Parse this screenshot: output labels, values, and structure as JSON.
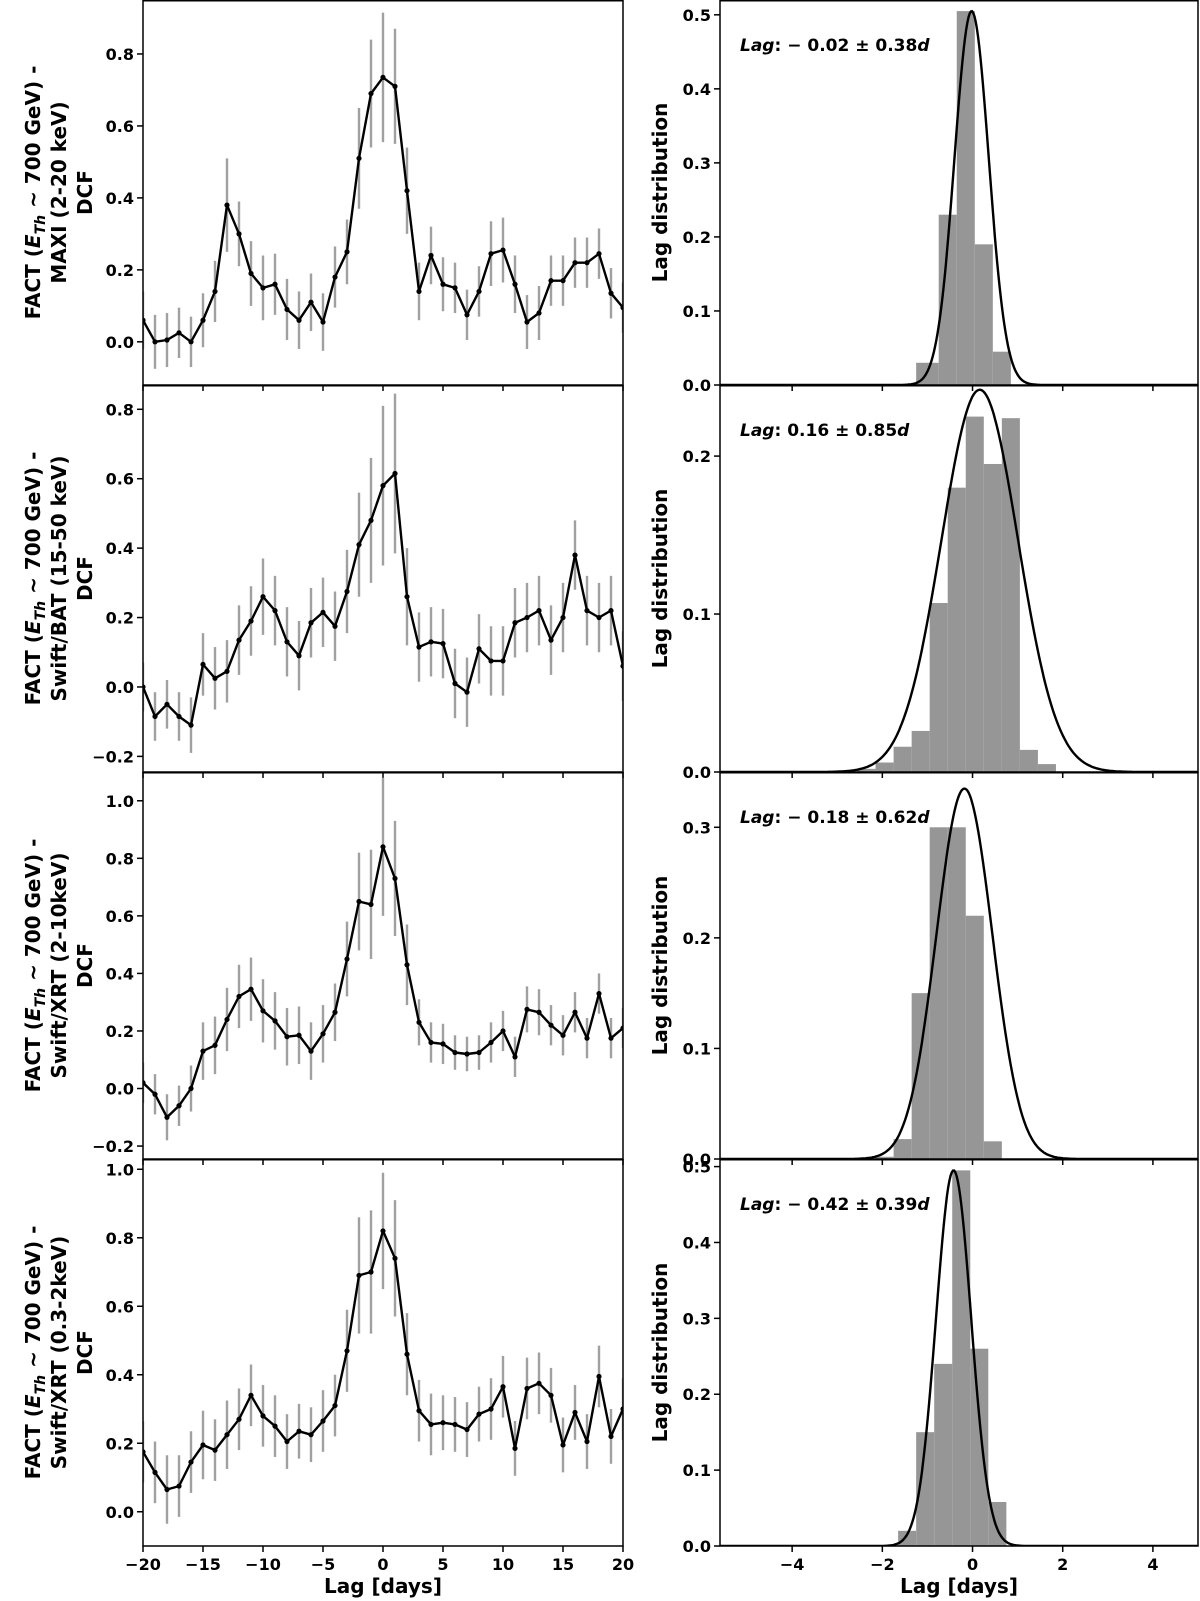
{
  "chart_data": [
    {
      "type": "line",
      "panel": "dcf-maxi",
      "ylabel_lines": [
        "FACT (E_Th ~ 700 GeV) -",
        "MAXI (2-20 keV)",
        "DCF"
      ],
      "xlabel": "",
      "xlim": [
        -20,
        20
      ],
      "ylim": [
        -0.12,
        0.95
      ],
      "xticks": [
        -20,
        -15,
        -10,
        -5,
        0,
        5,
        10,
        15,
        20
      ],
      "yticks": [
        0.0,
        0.2,
        0.4,
        0.6,
        0.8
      ],
      "ytick_labels": [
        "0.0",
        "0.2",
        "0.4",
        "0.6",
        "0.8"
      ],
      "x": [
        -20,
        -19,
        -18,
        -17,
        -16,
        -15,
        -14,
        -13,
        -12,
        -11,
        -10,
        -9,
        -8,
        -7,
        -6,
        -5,
        -4,
        -3,
        -2,
        -1,
        0,
        1,
        2,
        3,
        4,
        5,
        6,
        7,
        8,
        9,
        10,
        11,
        12,
        13,
        14,
        15,
        16,
        17,
        18,
        19,
        20
      ],
      "values": [
        0.06,
        0.0,
        0.005,
        0.025,
        0.0,
        0.06,
        0.14,
        0.38,
        0.3,
        0.19,
        0.15,
        0.16,
        0.09,
        0.06,
        0.11,
        0.055,
        0.18,
        0.25,
        0.51,
        0.69,
        0.735,
        0.71,
        0.42,
        0.14,
        0.24,
        0.16,
        0.15,
        0.075,
        0.14,
        0.245,
        0.255,
        0.16,
        0.055,
        0.08,
        0.17,
        0.17,
        0.22,
        0.22,
        0.245,
        0.135,
        0.095
      ],
      "errors": [
        0.08,
        0.075,
        0.075,
        0.07,
        0.07,
        0.075,
        0.085,
        0.13,
        0.09,
        0.09,
        0.09,
        0.085,
        0.085,
        0.08,
        0.08,
        0.08,
        0.085,
        0.09,
        0.14,
        0.15,
        0.18,
        0.16,
        0.12,
        0.08,
        0.08,
        0.075,
        0.07,
        0.07,
        0.07,
        0.09,
        0.09,
        0.08,
        0.075,
        0.075,
        0.07,
        0.07,
        0.07,
        0.07,
        0.07,
        0.07,
        0.07
      ]
    },
    {
      "type": "bar",
      "panel": "lag-maxi",
      "ylabel": "Lag distribution",
      "xlabel": "",
      "xlim": [
        -5.6,
        5.0
      ],
      "ylim": [
        0.0,
        0.52
      ],
      "xticks": [
        -4,
        -2,
        0,
        2,
        4
      ],
      "yticks": [
        0.0,
        0.1,
        0.2,
        0.3,
        0.4,
        0.5
      ],
      "ytick_labels": [
        "0.0",
        "0.1",
        "0.2",
        "0.3",
        "0.4",
        "0.5"
      ],
      "bin_edges": [
        -1.25,
        -0.75,
        -0.35,
        0.05,
        0.45,
        0.85,
        1.25
      ],
      "values": [
        0.03,
        0.23,
        0.505,
        0.19,
        0.045,
        0.0
      ],
      "fit": {
        "mean": -0.02,
        "sigma": 0.38,
        "peak": 0.505
      },
      "annotation_prefix": "Lag",
      "annotation": ": − 0.02 ± 0.38",
      "annotation_suffix": "d"
    },
    {
      "type": "line",
      "panel": "dcf-bat",
      "ylabel_lines": [
        "FACT (E_Th ~ 700 GeV) -",
        "Swift/BAT (15-50 keV)",
        "DCF"
      ],
      "xlabel": "",
      "xlim": [
        -20,
        20
      ],
      "ylim": [
        -0.245,
        0.87
      ],
      "xticks": [
        -20,
        -15,
        -10,
        -5,
        0,
        5,
        10,
        15,
        20
      ],
      "yticks": [
        -0.2,
        0.0,
        0.2,
        0.4,
        0.6,
        0.8
      ],
      "ytick_labels": [
        "−0.2",
        "0.0",
        "0.2",
        "0.4",
        "0.6",
        "0.8"
      ],
      "x": [
        -20,
        -19,
        -18,
        -17,
        -16,
        -15,
        -14,
        -13,
        -12,
        -11,
        -10,
        -9,
        -8,
        -7,
        -6,
        -5,
        -4,
        -3,
        -2,
        -1,
        0,
        1,
        2,
        3,
        4,
        5,
        6,
        7,
        8,
        9,
        10,
        11,
        12,
        13,
        14,
        15,
        16,
        17,
        18,
        19,
        20
      ],
      "values": [
        0.0,
        -0.085,
        -0.05,
        -0.085,
        -0.11,
        0.065,
        0.025,
        0.045,
        0.135,
        0.19,
        0.26,
        0.22,
        0.13,
        0.09,
        0.185,
        0.215,
        0.175,
        0.275,
        0.41,
        0.48,
        0.58,
        0.615,
        0.26,
        0.115,
        0.13,
        0.125,
        0.01,
        -0.015,
        0.11,
        0.075,
        0.075,
        0.185,
        0.2,
        0.22,
        0.135,
        0.2,
        0.38,
        0.22,
        0.2,
        0.22,
        0.06
      ],
      "errors": [
        0.07,
        0.07,
        0.07,
        0.07,
        0.08,
        0.09,
        0.09,
        0.09,
        0.1,
        0.1,
        0.11,
        0.1,
        0.1,
        0.1,
        0.1,
        0.1,
        0.1,
        0.12,
        0.15,
        0.18,
        0.23,
        0.23,
        0.14,
        0.1,
        0.1,
        0.1,
        0.1,
        0.1,
        0.1,
        0.1,
        0.1,
        0.1,
        0.1,
        0.1,
        0.1,
        0.1,
        0.1,
        0.1,
        0.1,
        0.1,
        0.1
      ]
    },
    {
      "type": "bar",
      "panel": "lag-bat",
      "ylabel": "Lag distribution",
      "xlabel": "",
      "xlim": [
        -5.6,
        5.0
      ],
      "ylim": [
        0.0,
        0.245
      ],
      "xticks": [
        -4,
        -2,
        0,
        2,
        4
      ],
      "yticks": [
        0.0,
        0.1,
        0.2
      ],
      "ytick_labels": [
        "0.0",
        "0.1",
        "0.2"
      ],
      "bin_edges": [
        -2.55,
        -2.15,
        -1.75,
        -1.35,
        -0.95,
        -0.55,
        -0.15,
        0.25,
        0.65,
        1.05,
        1.45,
        1.85,
        2.25
      ],
      "values": [
        0.002,
        0.006,
        0.016,
        0.026,
        0.107,
        0.18,
        0.225,
        0.195,
        0.224,
        0.014,
        0.005,
        0.0
      ],
      "fit": {
        "mean": 0.16,
        "sigma": 0.85,
        "peak": 0.242
      },
      "annotation_prefix": "Lag",
      "annotation": ": 0.16 ± 0.85",
      "annotation_suffix": "d"
    },
    {
      "type": "line",
      "panel": "dcf-xrt-hard",
      "ylabel_lines": [
        "FACT (E_Th ~ 700 GeV) -",
        "Swift/XRT (2-10keV)",
        "DCF"
      ],
      "xlabel": "",
      "xlim": [
        -20,
        20
      ],
      "ylim": [
        -0.245,
        1.1
      ],
      "xticks": [
        -20,
        -15,
        -10,
        -5,
        0,
        5,
        10,
        15,
        20
      ],
      "yticks": [
        -0.2,
        0.0,
        0.2,
        0.4,
        0.6,
        0.8,
        1.0
      ],
      "ytick_labels": [
        "−0.2",
        "0.0",
        "0.2",
        "0.4",
        "0.6",
        "0.8",
        "1.0"
      ],
      "x": [
        -20,
        -19,
        -18,
        -17,
        -16,
        -15,
        -14,
        -13,
        -12,
        -11,
        -10,
        -9,
        -8,
        -7,
        -6,
        -5,
        -4,
        -3,
        -2,
        -1,
        0,
        1,
        2,
        3,
        4,
        5,
        6,
        7,
        8,
        9,
        10,
        11,
        12,
        13,
        14,
        15,
        16,
        17,
        18,
        19,
        20
      ],
      "values": [
        0.02,
        -0.02,
        -0.1,
        -0.06,
        0.0,
        0.13,
        0.15,
        0.24,
        0.32,
        0.345,
        0.27,
        0.235,
        0.18,
        0.185,
        0.13,
        0.19,
        0.265,
        0.45,
        0.65,
        0.64,
        0.84,
        0.73,
        0.43,
        0.23,
        0.16,
        0.155,
        0.125,
        0.12,
        0.125,
        0.16,
        0.2,
        0.11,
        0.275,
        0.265,
        0.22,
        0.185,
        0.265,
        0.175,
        0.33,
        0.175,
        0.21
      ],
      "errors": [
        0.07,
        0.07,
        0.08,
        0.07,
        0.08,
        0.1,
        0.1,
        0.11,
        0.11,
        0.11,
        0.11,
        0.1,
        0.1,
        0.1,
        0.1,
        0.1,
        0.1,
        0.13,
        0.17,
        0.19,
        0.24,
        0.2,
        0.14,
        0.08,
        0.07,
        0.07,
        0.06,
        0.06,
        0.06,
        0.07,
        0.07,
        0.07,
        0.08,
        0.08,
        0.07,
        0.07,
        0.07,
        0.07,
        0.07,
        0.07,
        0.07
      ]
    },
    {
      "type": "bar",
      "panel": "lag-xrt-hard",
      "ylabel": "Lag distribution",
      "xlabel": "",
      "xlim": [
        -5.6,
        5.0
      ],
      "ylim": [
        0.0,
        0.35
      ],
      "xticks": [
        -4,
        -2,
        0,
        2,
        4
      ],
      "yticks": [
        0.0,
        0.1,
        0.2,
        0.3
      ],
      "ytick_labels": [
        "0.0",
        "0.1",
        "0.2",
        "0.3"
      ],
      "bin_edges": [
        -2.15,
        -1.75,
        -1.35,
        -0.95,
        -0.55,
        -0.15,
        0.25,
        0.65,
        1.05
      ],
      "values": [
        0.002,
        0.018,
        0.15,
        0.3,
        0.3,
        0.22,
        0.016,
        0.0
      ],
      "fit": {
        "mean": -0.18,
        "sigma": 0.62,
        "peak": 0.335
      },
      "annotation_prefix": "Lag",
      "annotation": ": − 0.18 ± 0.62",
      "annotation_suffix": "d"
    },
    {
      "type": "line",
      "panel": "dcf-xrt-soft",
      "ylabel_lines": [
        "FACT (E_Th ~ 700 GeV) -",
        "Swift/XRT (0.3-2keV)",
        "DCF"
      ],
      "xlabel": "Lag [days]",
      "xlim": [
        -20,
        20
      ],
      "ylim": [
        -0.1,
        1.03
      ],
      "xticks": [
        -20,
        -15,
        -10,
        -5,
        0,
        5,
        10,
        15,
        20
      ],
      "xtick_labels": [
        "−20",
        "−15",
        "−10",
        "−5",
        "0",
        "5",
        "10",
        "15",
        "20"
      ],
      "yticks": [
        0.0,
        0.2,
        0.4,
        0.6,
        0.8,
        1.0
      ],
      "ytick_labels": [
        "0.0",
        "0.2",
        "0.4",
        "0.6",
        "0.8",
        "1.0"
      ],
      "x": [
        -20,
        -19,
        -18,
        -17,
        -16,
        -15,
        -14,
        -13,
        -12,
        -11,
        -10,
        -9,
        -8,
        -7,
        -6,
        -5,
        -4,
        -3,
        -2,
        -1,
        0,
        1,
        2,
        3,
        4,
        5,
        6,
        7,
        8,
        9,
        10,
        11,
        12,
        13,
        14,
        15,
        16,
        17,
        18,
        19,
        20
      ],
      "values": [
        0.175,
        0.115,
        0.065,
        0.075,
        0.145,
        0.195,
        0.18,
        0.225,
        0.27,
        0.34,
        0.28,
        0.25,
        0.205,
        0.235,
        0.225,
        0.265,
        0.31,
        0.47,
        0.69,
        0.7,
        0.82,
        0.74,
        0.46,
        0.295,
        0.255,
        0.26,
        0.255,
        0.24,
        0.285,
        0.3,
        0.365,
        0.185,
        0.36,
        0.375,
        0.34,
        0.195,
        0.29,
        0.205,
        0.395,
        0.22,
        0.3
      ],
      "errors": [
        0.09,
        0.09,
        0.1,
        0.09,
        0.09,
        0.1,
        0.09,
        0.1,
        0.09,
        0.09,
        0.09,
        0.09,
        0.08,
        0.08,
        0.08,
        0.09,
        0.09,
        0.12,
        0.17,
        0.18,
        0.17,
        0.17,
        0.12,
        0.09,
        0.09,
        0.08,
        0.08,
        0.08,
        0.08,
        0.09,
        0.09,
        0.08,
        0.09,
        0.09,
        0.08,
        0.08,
        0.08,
        0.08,
        0.09,
        0.08,
        0.09
      ]
    },
    {
      "type": "bar",
      "panel": "lag-xrt-soft",
      "ylabel": "Lag distribution",
      "xlabel": "Lag [days]",
      "xlim": [
        -5.6,
        5.0
      ],
      "ylim": [
        0.0,
        0.51
      ],
      "xticks": [
        -4,
        -2,
        0,
        2,
        4
      ],
      "xtick_labels": [
        "−4",
        "−2",
        "0",
        "2",
        "4"
      ],
      "yticks": [
        0.0,
        0.1,
        0.2,
        0.3,
        0.4,
        0.5
      ],
      "ytick_labels": [
        "0.0",
        "0.1",
        "0.2",
        "0.3",
        "0.4",
        "0.5"
      ],
      "bin_edges": [
        -1.65,
        -1.25,
        -0.85,
        -0.45,
        -0.05,
        0.35,
        0.75
      ],
      "values": [
        0.02,
        0.15,
        0.24,
        0.495,
        0.26,
        0.058
      ],
      "fit": {
        "mean": -0.42,
        "sigma": 0.39,
        "peak": 0.495
      },
      "annotation_prefix": "Lag",
      "annotation": ": − 0.42 ± 0.39",
      "annotation_suffix": "d"
    }
  ]
}
